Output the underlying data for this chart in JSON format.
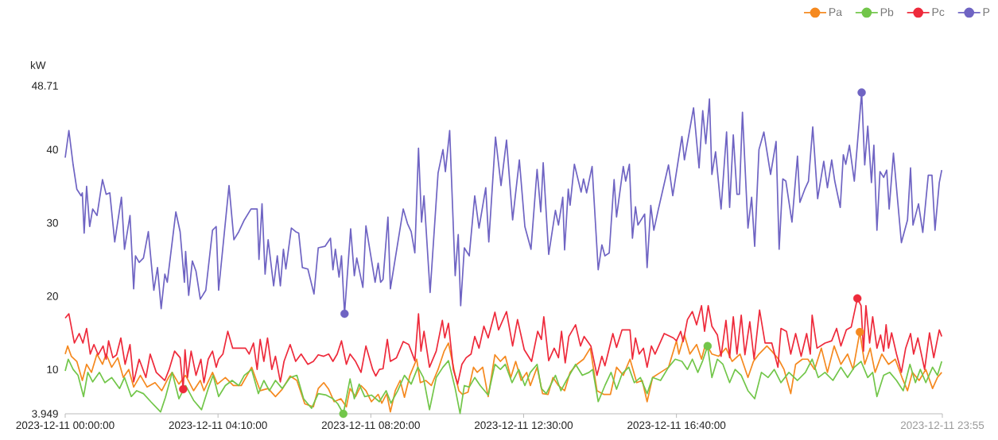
{
  "chart_data": {
    "type": "line",
    "ylabel": "kW",
    "xlim": [
      "2023-12-11T00:00",
      "2023-12-11T23:55"
    ],
    "ylim": [
      3.949,
      48.71
    ],
    "xticks": [
      {
        "value": "2023-12-11T00:00",
        "label": "2023-12-11 00:00:00"
      },
      {
        "value": "2023-12-11T04:10",
        "label": "2023-12-11 04:10:00"
      },
      {
        "value": "2023-12-11T08:20",
        "label": "2023-12-11 08:20:00"
      },
      {
        "value": "2023-12-11T12:30",
        "label": "2023-12-11 12:30:00"
      },
      {
        "value": "2023-12-11T16:40",
        "label": "2023-12-11 16:40:00"
      },
      {
        "value": "2023-12-11T23:55",
        "label": "2023-12-11 23:55"
      }
    ],
    "yticks": [
      3.949,
      10,
      20,
      30,
      40,
      48.71
    ],
    "legend": "top right",
    "series": [
      {
        "name": "Pa",
        "color": "#f5891f",
        "x": [
          "2023-12-11T00:00",
          "2023-12-11T00:04",
          "2023-12-11T00:10",
          "2023-12-11T00:19",
          "2023-12-11T00:28",
          "2023-12-11T00:35",
          "2023-12-11T00:43",
          "2023-12-11T00:52",
          "2023-12-11T01:01",
          "2023-12-11T01:07",
          "2023-12-11T01:16",
          "2023-12-11T01:26",
          "2023-12-11T01:35",
          "2023-12-11T01:44",
          "2023-12-11T01:52",
          "2023-12-11T02:03",
          "2023-12-11T02:14",
          "2023-12-11T02:27",
          "2023-12-11T02:38",
          "2023-12-11T02:49",
          "2023-12-11T02:55",
          "2023-12-11T03:06",
          "2023-12-11T03:17",
          "2023-12-11T03:30",
          "2023-12-11T03:41",
          "2023-12-11T03:47",
          "2023-12-11T04:01",
          "2023-12-11T04:09",
          "2023-12-11T04:22",
          "2023-12-11T04:35",
          "2023-12-11T04:48",
          "2023-12-11T05:05",
          "2023-12-11T05:19",
          "2023-12-11T05:32",
          "2023-12-11T05:44",
          "2023-12-11T05:55",
          "2023-12-11T06:08",
          "2023-12-11T06:19",
          "2023-12-11T06:32",
          "2023-12-11T06:46",
          "2023-12-11T06:54",
          "2023-12-11T07:03",
          "2023-12-11T07:11",
          "2023-12-11T07:20",
          "2023-12-11T07:31",
          "2023-12-11T07:40",
          "2023-12-11T07:46",
          "2023-12-11T07:55",
          "2023-12-11T08:04",
          "2023-12-11T08:12",
          "2023-12-11T08:21",
          "2023-12-11T08:32",
          "2023-12-11T08:38",
          "2023-12-11T08:46",
          "2023-12-11T08:52",
          "2023-12-11T09:00",
          "2023-12-11T09:08",
          "2023-12-11T09:15",
          "2023-12-11T09:24",
          "2023-12-11T09:35",
          "2023-12-11T09:41",
          "2023-12-11T09:50",
          "2023-12-11T09:59",
          "2023-12-11T10:10",
          "2023-12-11T10:20",
          "2023-12-11T10:27",
          "2023-12-11T10:38",
          "2023-12-11T10:44",
          "2023-12-11T10:50",
          "2023-12-11T10:59",
          "2023-12-11T11:08",
          "2023-12-11T11:14",
          "2023-12-11T11:23",
          "2023-12-11T11:32",
          "2023-12-11T11:43",
          "2023-12-11T11:52",
          "2023-12-11T12:00",
          "2023-12-11T12:09",
          "2023-12-11T12:17",
          "2023-12-11T12:26",
          "2023-12-11T12:35",
          "2023-12-11T12:41",
          "2023-12-11T12:52",
          "2023-12-11T13:01",
          "2023-12-11T13:10",
          "2023-12-11T13:18",
          "2023-12-11T13:27",
          "2023-12-11T13:37",
          "2023-12-11T13:46",
          "2023-12-11T13:57",
          "2023-12-11T14:08",
          "2023-12-11T14:19",
          "2023-12-11T14:30",
          "2023-12-11T14:41",
          "2023-12-11T14:52",
          "2023-12-11T15:02",
          "2023-12-11T15:13",
          "2023-12-11T15:24",
          "2023-12-11T15:35",
          "2023-12-11T15:44",
          "2023-12-11T15:52",
          "2023-12-11T16:01",
          "2023-12-11T16:14",
          "2023-12-11T16:27",
          "2023-12-11T16:40",
          "2023-12-11T16:44",
          "2023-12-11T16:53",
          "2023-12-11T17:02",
          "2023-12-11T17:13",
          "2023-12-11T17:21",
          "2023-12-11T17:28",
          "2023-12-11T17:38",
          "2023-12-11T17:49",
          "2023-12-11T18:01",
          "2023-12-11T18:11",
          "2023-12-11T18:24",
          "2023-12-11T18:37",
          "2023-12-11T18:46",
          "2023-12-11T18:55",
          "2023-12-11T19:08",
          "2023-12-11T19:16",
          "2023-12-11T19:27",
          "2023-12-11T19:36",
          "2023-12-11T19:47",
          "2023-12-11T19:55",
          "2023-12-11T20:06",
          "2023-12-11T20:15",
          "2023-12-11T20:26",
          "2023-12-11T20:37",
          "2023-12-11T20:47",
          "2023-12-11T20:58",
          "2023-12-11T21:09",
          "2023-12-11T21:20",
          "2023-12-11T21:29",
          "2023-12-11T21:40",
          "2023-12-11T21:48",
          "2023-12-11T21:57",
          "2023-12-11T22:05",
          "2023-12-11T22:16",
          "2023-12-11T22:27",
          "2023-12-11T22:38",
          "2023-12-11T22:49",
          "2023-12-11T22:58",
          "2023-12-11T23:06",
          "2023-12-11T23:17",
          "2023-12-11T23:28",
          "2023-12-11T23:39",
          "2023-12-11T23:47",
          "2023-12-11T23:54"
        ],
        "values": [
          12.1,
          13.2,
          11.8,
          11.1,
          8.5,
          10.7,
          9.6,
          12.1,
          10.7,
          12.1,
          10.3,
          11.6,
          8.9,
          10.0,
          7.6,
          9.2,
          7.6,
          8.2,
          7.1,
          8.9,
          9.6,
          8.0,
          9.2,
          7.1,
          8.5,
          7.1,
          9.6,
          8.0,
          8.9,
          7.8,
          7.8,
          10.3,
          7.1,
          7.4,
          6.3,
          7.3,
          9.1,
          8.5,
          5.3,
          4.9,
          7.4,
          8.2,
          7.3,
          5.6,
          6.0,
          4.9,
          7.4,
          6.3,
          7.8,
          7.1,
          5.6,
          6.6,
          5.4,
          6.7,
          4.2,
          7.1,
          8.5,
          6.2,
          9.2,
          11.4,
          8.2,
          8.5,
          7.8,
          10.0,
          12.5,
          13.6,
          9.2,
          7.1,
          6.6,
          6.9,
          10.3,
          9.6,
          10.3,
          6.3,
          12.0,
          11.1,
          11.8,
          8.9,
          11.1,
          8.5,
          9.6,
          7.8,
          10.3,
          6.7,
          6.6,
          8.9,
          7.8,
          7.1,
          9.6,
          10.7,
          11.4,
          12.9,
          7.1,
          6.6,
          6.6,
          10.3,
          9.2,
          11.4,
          8.2,
          8.5,
          5.6,
          8.9,
          9.6,
          10.3,
          13.9,
          12.1,
          14.7,
          12.1,
          13.4,
          11.4,
          13.6,
          12.1,
          11.8,
          12.9,
          11.1,
          12.1,
          8.9,
          11.1,
          12.1,
          13.2,
          12.5,
          11.4,
          10.0,
          6.7,
          10.7,
          11.4,
          11.4,
          10.0,
          12.9,
          9.6,
          13.2,
          10.7,
          12.1,
          10.0,
          15.1,
          10.7,
          12.9,
          9.6,
          12.1,
          10.7,
          11.4,
          8.9,
          7.1,
          9.6,
          8.5,
          10.0,
          7.4,
          8.9,
          9.6
        ]
      },
      {
        "name": "Pb",
        "color": "#72c64a",
        "x": [
          "2023-12-11T00:00",
          "2023-12-11T00:05",
          "2023-12-11T00:13",
          "2023-12-11T00:21",
          "2023-12-11T00:30",
          "2023-12-11T00:37",
          "2023-12-11T00:45",
          "2023-12-11T00:56",
          "2023-12-11T01:05",
          "2023-12-11T01:16",
          "2023-12-11T01:29",
          "2023-12-11T01:37",
          "2023-12-11T01:48",
          "2023-12-11T01:57",
          "2023-12-11T02:08",
          "2023-12-11T02:20",
          "2023-12-11T02:36",
          "2023-12-11T02:44",
          "2023-12-11T02:55",
          "2023-12-11T03:06",
          "2023-12-11T03:17",
          "2023-12-11T03:30",
          "2023-12-11T03:43",
          "2023-12-11T03:54",
          "2023-12-11T04:02",
          "2023-12-11T04:11",
          "2023-12-11T04:22",
          "2023-12-11T04:33",
          "2023-12-11T04:44",
          "2023-12-11T04:53",
          "2023-12-11T05:05",
          "2023-12-11T05:16",
          "2023-12-11T05:25",
          "2023-12-11T05:34",
          "2023-12-11T05:44",
          "2023-12-11T05:55",
          "2023-12-11T06:08",
          "2023-12-11T06:19",
          "2023-12-11T06:30",
          "2023-12-11T06:43",
          "2023-12-11T06:54",
          "2023-12-11T07:07",
          "2023-12-11T07:18",
          "2023-12-11T07:26",
          "2023-12-11T07:35",
          "2023-12-11T07:46",
          "2023-12-11T07:53",
          "2023-12-11T08:01",
          "2023-12-11T08:10",
          "2023-12-11T08:21",
          "2023-12-11T08:34",
          "2023-12-11T08:45",
          "2023-12-11T08:53",
          "2023-12-11T09:04",
          "2023-12-11T09:15",
          "2023-12-11T09:26",
          "2023-12-11T09:37",
          "2023-12-11T09:46",
          "2023-12-11T09:56",
          "2023-12-11T10:07",
          "2023-12-11T10:18",
          "2023-12-11T10:27",
          "2023-12-11T10:38",
          "2023-12-11T10:46",
          "2023-12-11T10:53",
          "2023-12-11T11:01",
          "2023-12-11T11:10",
          "2023-12-11T11:19",
          "2023-12-11T11:32",
          "2023-12-11T11:43",
          "2023-12-11T11:52",
          "2023-12-11T12:00",
          "2023-12-11T12:11",
          "2023-12-11T12:22",
          "2023-12-11T12:32",
          "2023-12-11T12:41",
          "2023-12-11T12:52",
          "2023-12-11T12:59",
          "2023-12-11T13:07",
          "2023-12-11T13:16",
          "2023-12-11T13:22",
          "2023-12-11T13:31",
          "2023-12-11T13:40",
          "2023-12-11T13:55",
          "2023-12-11T14:06",
          "2023-12-11T14:17",
          "2023-12-11T14:23",
          "2023-12-11T14:32",
          "2023-12-11T14:43",
          "2023-12-11T14:53",
          "2023-12-11T15:02",
          "2023-12-11T15:11",
          "2023-12-11T15:22",
          "2023-12-11T15:31",
          "2023-12-11T15:41",
          "2023-12-11T15:52",
          "2023-12-11T16:01",
          "2023-12-11T16:14",
          "2023-12-11T16:27",
          "2023-12-11T16:38",
          "2023-12-11T16:49",
          "2023-12-11T16:58",
          "2023-12-11T17:06",
          "2023-12-11T17:15",
          "2023-12-11T17:23",
          "2023-12-11T17:31",
          "2023-12-11T17:38",
          "2023-12-11T17:47",
          "2023-12-11T17:56",
          "2023-12-11T18:07",
          "2023-12-11T18:16",
          "2023-12-11T18:26",
          "2023-12-11T18:37",
          "2023-12-11T18:48",
          "2023-12-11T18:59",
          "2023-12-11T19:10",
          "2023-12-11T19:20",
          "2023-12-11T19:31",
          "2023-12-11T19:44",
          "2023-12-11T19:58",
          "2023-12-11T20:11",
          "2023-12-11T20:22",
          "2023-12-11T20:32",
          "2023-12-11T20:43",
          "2023-12-11T20:56",
          "2023-12-11T21:09",
          "2023-12-11T21:20",
          "2023-12-11T21:31",
          "2023-12-11T21:42",
          "2023-12-11T21:53",
          "2023-12-11T22:01",
          "2023-12-11T22:08",
          "2023-12-11T22:19",
          "2023-12-11T22:29",
          "2023-12-11T22:40",
          "2023-12-11T22:51",
          "2023-12-11T23:02",
          "2023-12-11T23:11",
          "2023-12-11T23:19",
          "2023-12-11T23:28",
          "2023-12-11T23:39",
          "2023-12-11T23:47",
          "2023-12-11T23:54"
        ],
        "values": [
          9.8,
          11.4,
          10.0,
          9.2,
          6.3,
          9.6,
          8.3,
          9.6,
          8.2,
          8.9,
          7.4,
          8.9,
          6.3,
          7.1,
          6.7,
          5.6,
          4.2,
          6.2,
          9.6,
          6.0,
          7.8,
          5.8,
          4.5,
          7.4,
          9.2,
          6.3,
          7.8,
          8.5,
          7.8,
          9.2,
          10.0,
          6.7,
          8.5,
          7.1,
          8.5,
          7.4,
          8.9,
          9.2,
          6.0,
          4.7,
          6.7,
          6.5,
          6.0,
          5.3,
          3.95,
          8.7,
          6.0,
          8.0,
          6.3,
          6.5,
          5.6,
          7.1,
          5.4,
          7.1,
          9.2,
          8.0,
          10.3,
          8.9,
          4.5,
          8.9,
          10.3,
          11.2,
          7.4,
          4.0,
          7.8,
          7.6,
          8.9,
          7.8,
          6.5,
          10.7,
          10.0,
          10.7,
          8.2,
          10.0,
          7.8,
          9.6,
          10.7,
          7.4,
          6.7,
          8.2,
          9.2,
          7.1,
          8.5,
          10.7,
          9.2,
          9.6,
          10.0,
          5.6,
          7.8,
          9.6,
          7.3,
          9.4,
          10.3,
          8.2,
          8.9,
          6.7,
          8.9,
          8.5,
          10.3,
          11.4,
          11.1,
          10.0,
          11.4,
          9.6,
          11.2,
          13.2,
          8.9,
          11.4,
          10.7,
          8.2,
          10.0,
          9.2,
          7.1,
          6.0,
          9.6,
          8.9,
          10.0,
          8.2,
          9.6,
          8.5,
          9.6,
          11.4,
          8.9,
          9.6,
          8.5,
          10.3,
          8.9,
          10.3,
          11.1,
          8.9,
          9.6,
          6.3,
          9.2,
          9.6,
          8.5,
          7.1,
          10.7,
          8.2,
          10.0,
          8.2,
          10.3,
          9.2,
          11.1
        ]
      },
      {
        "name": "Pc",
        "color": "#ee2a3b",
        "x": [
          "2023-12-11T00:00",
          "2023-12-11T00:06",
          "2023-12-11T00:15",
          "2023-12-11T00:23",
          "2023-12-11T00:29",
          "2023-12-11T00:35",
          "2023-12-11T00:41",
          "2023-12-11T00:47",
          "2023-12-11T00:54",
          "2023-12-11T01:02",
          "2023-12-11T01:07",
          "2023-12-11T01:11",
          "2023-12-11T01:18",
          "2023-12-11T01:24",
          "2023-12-11T01:31",
          "2023-12-11T01:38",
          "2023-12-11T01:46",
          "2023-12-11T01:52",
          "2023-12-11T02:01",
          "2023-12-11T02:12",
          "2023-12-11T02:19",
          "2023-12-11T02:29",
          "2023-12-11T02:43",
          "2023-12-11T02:50",
          "2023-12-11T02:59",
          "2023-12-11T03:08",
          "2023-12-11T03:13",
          "2023-12-11T03:16",
          "2023-12-11T03:20",
          "2023-12-11T03:26",
          "2023-12-11T03:34",
          "2023-12-11T03:42",
          "2023-12-11T03:47",
          "2023-12-11T03:54",
          "2023-12-11T04:01",
          "2023-12-11T04:07",
          "2023-12-11T04:11",
          "2023-12-11T04:18",
          "2023-12-11T04:26",
          "2023-12-11T04:34",
          "2023-12-11T04:44",
          "2023-12-11T04:55",
          "2023-12-11T05:01",
          "2023-12-11T05:08",
          "2023-12-11T05:14",
          "2023-12-11T05:19",
          "2023-12-11T05:25",
          "2023-12-11T05:31",
          "2023-12-11T05:38",
          "2023-12-11T05:44",
          "2023-12-11T05:52",
          "2023-12-11T05:58",
          "2023-12-11T06:08",
          "2023-12-11T06:17",
          "2023-12-11T06:26",
          "2023-12-11T06:37",
          "2023-12-11T06:46",
          "2023-12-11T06:54",
          "2023-12-11T07:03",
          "2023-12-11T07:11",
          "2023-12-11T07:18",
          "2023-12-11T07:25",
          "2023-12-11T07:32",
          "2023-12-11T07:40",
          "2023-12-11T07:46",
          "2023-12-11T07:55",
          "2023-12-11T08:04",
          "2023-12-11T08:12",
          "2023-12-11T08:23",
          "2023-12-11T08:28",
          "2023-12-11T08:34",
          "2023-12-11T08:40",
          "2023-12-11T08:47",
          "2023-12-11T08:52",
          "2023-12-11T09:02",
          "2023-12-11T09:13",
          "2023-12-11T09:22",
          "2023-12-11T09:32",
          "2023-12-11T09:38",
          "2023-12-11T09:42",
          "2023-12-11T09:47",
          "2023-12-11T09:56",
          "2023-12-11T10:07",
          "2023-12-11T10:17",
          "2023-12-11T10:21",
          "2023-12-11T10:27",
          "2023-12-11T10:35",
          "2023-12-11T10:42",
          "2023-12-11T10:49",
          "2023-12-11T10:56",
          "2023-12-11T11:04",
          "2023-12-11T11:10",
          "2023-12-11T11:17",
          "2023-12-11T11:25",
          "2023-12-11T11:32",
          "2023-12-11T11:43",
          "2023-12-11T11:49",
          "2023-12-11T12:02",
          "2023-12-11T12:12",
          "2023-12-11T12:20",
          "2023-12-11T12:31",
          "2023-12-11T12:43",
          "2023-12-11T12:53",
          "2023-12-11T12:59",
          "2023-12-11T13:03",
          "2023-12-11T13:11",
          "2023-12-11T13:20",
          "2023-12-11T13:27",
          "2023-12-11T13:32",
          "2023-12-11T13:38",
          "2023-12-11T13:44",
          "2023-12-11T13:55",
          "2023-12-11T14:03",
          "2023-12-11T14:09",
          "2023-12-11T14:20",
          "2023-12-11T14:30",
          "2023-12-11T14:38",
          "2023-12-11T14:43",
          "2023-12-11T14:56",
          "2023-12-11T15:02",
          "2023-12-11T15:11",
          "2023-12-11T15:24",
          "2023-12-11T15:28",
          "2023-12-11T15:33",
          "2023-12-11T15:39",
          "2023-12-11T15:46",
          "2023-12-11T15:52",
          "2023-12-11T15:59",
          "2023-12-11T16:05",
          "2023-12-11T16:20",
          "2023-12-11T16:35",
          "2023-12-11T16:40",
          "2023-12-11T16:47",
          "2023-12-11T16:51",
          "2023-12-11T16:58",
          "2023-12-11T17:06",
          "2023-12-11T17:13",
          "2023-12-11T17:21",
          "2023-12-11T17:26",
          "2023-12-11T17:32",
          "2023-12-11T17:38",
          "2023-12-11T17:47",
          "2023-12-11T17:53",
          "2023-12-11T18:01",
          "2023-12-11T18:07",
          "2023-12-11T18:13",
          "2023-12-11T18:19",
          "2023-12-11T18:26",
          "2023-12-11T18:32",
          "2023-12-11T18:40",
          "2023-12-11T18:47",
          "2023-12-11T18:56",
          "2023-12-11T19:05",
          "2023-12-11T19:16",
          "2023-12-11T19:26",
          "2023-12-11T19:31",
          "2023-12-11T19:40",
          "2023-12-11T19:47",
          "2023-12-11T19:55",
          "2023-12-11T20:04",
          "2023-12-11T20:13",
          "2023-12-11T20:19",
          "2023-12-11T20:22",
          "2023-12-11T20:30",
          "2023-12-11T20:43",
          "2023-12-11T20:54",
          "2023-12-11T21:02",
          "2023-12-11T21:09",
          "2023-12-11T21:18",
          "2023-12-11T21:26",
          "2023-12-11T21:36",
          "2023-12-11T21:42",
          "2023-12-11T21:46",
          "2023-12-11T21:50",
          "2023-12-11T21:56",
          "2023-12-11T22:01",
          "2023-12-11T22:08",
          "2023-12-11T22:14",
          "2023-12-11T22:19",
          "2023-12-11T22:23",
          "2023-12-11T22:27",
          "2023-12-11T22:32",
          "2023-12-11T22:40",
          "2023-12-11T22:48",
          "2023-12-11T22:55",
          "2023-12-11T23:03",
          "2023-12-11T23:08",
          "2023-12-11T23:15",
          "2023-12-11T23:26",
          "2023-12-11T23:34",
          "2023-12-11T23:41",
          "2023-12-11T23:50",
          "2023-12-11T23:54"
        ],
        "values": [
          17.0,
          17.6,
          13.6,
          14.9,
          13.6,
          15.6,
          12.1,
          13.4,
          12.0,
          13.2,
          11.4,
          13.9,
          11.6,
          12.0,
          14.3,
          10.7,
          13.4,
          8.3,
          11.4,
          8.9,
          12.1,
          9.6,
          8.5,
          10.0,
          12.5,
          11.6,
          7.3,
          12.7,
          8.9,
          12.5,
          9.2,
          11.4,
          8.2,
          11.4,
          12.5,
          10.3,
          11.4,
          12.1,
          15.2,
          12.9,
          12.9,
          12.9,
          12.1,
          13.6,
          10.0,
          14.1,
          11.1,
          14.3,
          10.0,
          11.8,
          8.3,
          11.1,
          13.4,
          11.1,
          12.1,
          10.7,
          11.1,
          12.0,
          11.8,
          12.1,
          11.1,
          12.1,
          13.9,
          10.7,
          12.1,
          11.1,
          9.6,
          13.2,
          10.0,
          9.1,
          10.0,
          10.1,
          14.1,
          11.1,
          11.6,
          13.8,
          13.4,
          11.2,
          17.6,
          12.5,
          15.2,
          10.3,
          12.5,
          16.7,
          14.3,
          16.3,
          10.0,
          8.0,
          10.7,
          11.6,
          12.1,
          14.5,
          12.9,
          15.9,
          14.3,
          17.8,
          15.4,
          17.9,
          13.2,
          16.8,
          12.7,
          11.1,
          15.2,
          14.1,
          17.2,
          11.2,
          12.9,
          11.6,
          15.2,
          10.9,
          14.5,
          16.1,
          13.2,
          14.5,
          13.2,
          9.2,
          11.8,
          10.5,
          14.9,
          13.0,
          15.4,
          15.4,
          11.4,
          14.3,
          12.1,
          12.9,
          10.3,
          13.2,
          12.1,
          14.9,
          14.3,
          13.9,
          15.2,
          13.8,
          16.8,
          17.9,
          16.1,
          18.7,
          15.2,
          18.7,
          15.9,
          14.7,
          11.8,
          16.7,
          11.6,
          17.2,
          12.1,
          17.4,
          12.0,
          16.5,
          11.4,
          18.1,
          13.6,
          13.6,
          10.3,
          15.6,
          15.2,
          12.1,
          14.9,
          11.8,
          14.9,
          12.1,
          17.4,
          12.9,
          13.6,
          13.9,
          15.6,
          13.2,
          15.4,
          15.8,
          19.7,
          18.7,
          12.5,
          18.7,
          13.6,
          17.2,
          12.9,
          14.7,
          12.5,
          16.1,
          12.9,
          15.0,
          12.1,
          9.6,
          12.9,
          14.9,
          12.1,
          14.3,
          10.0,
          15.0,
          11.6,
          15.4,
          14.5
        ]
      },
      {
        "name": "P",
        "color": "#6f64c3",
        "x": [
          "2023-12-11T00:00",
          "2023-12-11T00:06",
          "2023-12-11T00:13",
          "2023-12-11T00:19",
          "2023-12-11T00:26",
          "2023-12-11T00:28",
          "2023-12-11T00:31",
          "2023-12-11T00:35",
          "2023-12-11T00:40",
          "2023-12-11T00:45",
          "2023-12-11T00:52",
          "2023-12-11T01:01",
          "2023-12-11T01:07",
          "2023-12-11T01:13",
          "2023-12-11T01:21",
          "2023-12-11T01:32",
          "2023-12-11T01:37",
          "2023-12-11T01:46",
          "2023-12-11T01:52",
          "2023-12-11T01:55",
          "2023-12-11T02:01",
          "2023-12-11T02:08",
          "2023-12-11T02:16",
          "2023-12-11T02:25",
          "2023-12-11T02:31",
          "2023-12-11T02:37",
          "2023-12-11T02:43",
          "2023-12-11T02:47",
          "2023-12-11T03:01",
          "2023-12-11T03:08",
          "2023-12-11T03:15",
          "2023-12-11T03:17",
          "2023-12-11T03:22",
          "2023-12-11T03:28",
          "2023-12-11T03:34",
          "2023-12-11T03:41",
          "2023-12-11T03:50",
          "2023-12-11T04:01",
          "2023-12-11T04:07",
          "2023-12-11T04:11",
          "2023-12-11T04:28",
          "2023-12-11T04:36",
          "2023-12-11T04:44",
          "2023-12-11T04:53",
          "2023-12-11T05:04",
          "2023-12-11T05:14",
          "2023-12-11T05:17",
          "2023-12-11T05:22",
          "2023-12-11T05:27",
          "2023-12-11T05:32",
          "2023-12-11T05:41",
          "2023-12-11T05:47",
          "2023-12-11T05:52",
          "2023-12-11T05:57",
          "2023-12-11T06:01",
          "2023-12-11T06:10",
          "2023-12-11T06:17",
          "2023-12-11T06:22",
          "2023-12-11T06:28",
          "2023-12-11T06:37",
          "2023-12-11T06:47",
          "2023-12-11T06:54",
          "2023-12-11T07:05",
          "2023-12-11T07:14",
          "2023-12-11T07:18",
          "2023-12-11T07:22",
          "2023-12-11T07:28",
          "2023-12-11T07:32",
          "2023-12-11T07:37",
          "2023-12-11T07:47",
          "2023-12-11T07:53",
          "2023-12-11T07:57",
          "2023-12-11T08:07",
          "2023-12-11T08:12",
          "2023-12-11T08:27",
          "2023-12-11T08:32",
          "2023-12-11T08:36",
          "2023-12-11T08:40",
          "2023-12-11T08:48",
          "2023-12-11T08:52",
          "2023-12-11T09:13",
          "2023-12-11T09:20",
          "2023-12-11T09:26",
          "2023-12-11T09:32",
          "2023-12-11T09:38",
          "2023-12-11T09:43",
          "2023-12-11T09:47",
          "2023-12-11T09:57",
          "2023-12-11T10:10",
          "2023-12-11T10:18",
          "2023-12-11T10:22",
          "2023-12-11T10:29",
          "2023-12-11T10:38",
          "2023-12-11T10:43",
          "2023-12-11T10:47",
          "2023-12-11T10:53",
          "2023-12-11T11:01",
          "2023-12-11T11:10",
          "2023-12-11T11:17",
          "2023-12-11T11:28",
          "2023-12-11T11:33",
          "2023-12-11T11:44",
          "2023-12-11T11:53",
          "2023-12-11T12:02",
          "2023-12-11T12:12",
          "2023-12-11T12:23",
          "2023-12-11T12:32",
          "2023-12-11T12:42",
          "2023-12-11T12:52",
          "2023-12-11T12:58",
          "2023-12-11T13:02",
          "2023-12-11T13:11",
          "2023-12-11T13:22",
          "2023-12-11T13:27",
          "2023-12-11T13:34",
          "2023-12-11T13:37",
          "2023-12-11T13:43",
          "2023-12-11T13:46",
          "2023-12-11T13:53",
          "2023-12-11T14:04",
          "2023-12-11T14:08",
          "2023-12-11T14:13",
          "2023-12-11T14:22",
          "2023-12-11T14:32",
          "2023-12-11T14:38",
          "2023-12-11T14:43",
          "2023-12-11T14:50",
          "2023-12-11T14:58",
          "2023-12-11T15:02",
          "2023-12-11T15:13",
          "2023-12-11T15:17",
          "2023-12-11T15:23",
          "2023-12-11T15:28",
          "2023-12-11T15:33",
          "2023-12-11T15:37",
          "2023-12-11T15:48",
          "2023-12-11T15:52",
          "2023-12-11T15:58",
          "2023-12-11T16:03",
          "2023-12-11T16:10",
          "2023-12-11T16:27",
          "2023-12-11T16:34",
          "2023-12-11T16:49",
          "2023-12-11T16:53",
          "2023-12-11T17:08",
          "2023-12-11T17:17",
          "2023-12-11T17:23",
          "2023-12-11T17:28",
          "2023-12-11T17:34",
          "2023-12-11T17:38",
          "2023-12-11T17:44",
          "2023-12-11T17:53",
          "2023-12-11T18:02",
          "2023-12-11T18:07",
          "2023-12-11T18:13",
          "2023-12-11T18:19",
          "2023-12-11T18:23",
          "2023-12-11T18:28",
          "2023-12-11T18:37",
          "2023-12-11T18:43",
          "2023-12-11T18:48",
          "2023-12-11T18:55",
          "2023-12-11T19:03",
          "2023-12-11T19:14",
          "2023-12-11T19:23",
          "2023-12-11T19:28",
          "2023-12-11T19:34",
          "2023-12-11T19:39",
          "2023-12-11T19:49",
          "2023-12-11T19:58",
          "2023-12-11T20:02",
          "2023-12-11T20:10",
          "2023-12-11T20:16",
          "2023-12-11T20:23",
          "2023-12-11T20:31",
          "2023-12-11T20:41",
          "2023-12-11T20:47",
          "2023-12-11T20:54",
          "2023-12-11T20:59",
          "2023-12-11T21:08",
          "2023-12-11T21:13",
          "2023-12-11T21:17",
          "2023-12-11T21:23",
          "2023-12-11T21:31",
          "2023-12-11T21:43",
          "2023-12-11T21:48",
          "2023-12-11T21:53",
          "2023-12-11T21:59",
          "2023-12-11T22:03",
          "2023-12-11T22:08",
          "2023-12-11T22:13",
          "2023-12-11T22:19",
          "2023-12-11T22:24",
          "2023-12-11T22:28",
          "2023-12-11T22:35",
          "2023-12-11T22:48",
          "2023-12-11T22:58",
          "2023-12-11T23:03",
          "2023-12-11T23:07",
          "2023-12-11T23:16",
          "2023-12-11T23:23",
          "2023-12-11T23:32",
          "2023-12-11T23:38",
          "2023-12-11T23:43",
          "2023-12-11T23:50",
          "2023-12-11T23:54"
        ],
        "values": [
          38.9,
          42.6,
          37.9,
          34.6,
          33.7,
          34.1,
          28.6,
          35.0,
          29.5,
          31.9,
          31.0,
          35.9,
          33.9,
          34.1,
          27.4,
          33.5,
          26.4,
          31.0,
          21.0,
          25.5,
          24.6,
          25.2,
          28.8,
          20.8,
          23.9,
          18.3,
          23.0,
          21.9,
          31.5,
          28.8,
          21.9,
          26.1,
          20.1,
          24.8,
          23.4,
          19.6,
          20.8,
          29.0,
          29.5,
          20.8,
          35.1,
          27.7,
          28.8,
          30.4,
          31.9,
          31.9,
          25.0,
          32.6,
          23.0,
          27.7,
          21.4,
          25.5,
          21.4,
          26.4,
          23.7,
          29.3,
          28.8,
          28.6,
          23.9,
          23.7,
          20.3,
          26.6,
          26.8,
          27.9,
          23.6,
          26.4,
          22.6,
          25.5,
          17.6,
          29.2,
          22.8,
          25.2,
          21.2,
          29.6,
          21.9,
          24.5,
          21.9,
          22.3,
          30.8,
          21.0,
          31.9,
          29.9,
          28.8,
          25.9,
          40.2,
          30.1,
          33.7,
          20.5,
          36.8,
          40.0,
          37.0,
          42.6,
          22.8,
          28.4,
          18.7,
          26.6,
          25.5,
          33.7,
          29.3,
          34.8,
          27.4,
          41.7,
          35.1,
          41.3,
          30.4,
          38.6,
          29.5,
          26.4,
          37.3,
          31.5,
          38.2,
          25.7,
          31.7,
          29.7,
          33.5,
          26.3,
          34.6,
          32.4,
          38.0,
          34.2,
          36.0,
          34.1,
          37.7,
          23.6,
          27.0,
          25.5,
          25.9,
          35.9,
          30.8,
          37.7,
          35.7,
          38.0,
          27.9,
          32.2,
          29.7,
          31.2,
          23.9,
          32.4,
          29.0,
          31.7,
          37.9,
          33.7,
          41.8,
          38.6,
          45.7,
          37.5,
          45.3,
          40.8,
          46.9,
          36.6,
          39.7,
          31.9,
          42.4,
          32.1,
          42.0,
          33.9,
          33.9,
          45.1,
          29.3,
          33.5,
          26.8,
          40.0,
          42.4,
          36.6,
          41.1,
          26.4,
          36.0,
          35.7,
          30.1,
          39.1,
          32.8,
          34.6,
          35.7,
          43.1,
          33.3,
          38.4,
          34.8,
          38.6,
          35.7,
          32.1,
          39.3,
          38.0,
          40.6,
          35.7,
          47.8,
          37.9,
          43.2,
          35.5,
          40.6,
          29.0,
          37.0,
          36.2,
          37.2,
          31.9,
          39.5,
          27.3,
          30.4,
          37.5,
          29.7,
          32.6,
          28.7,
          36.5,
          36.5,
          29.0,
          35.5,
          37.2
        ]
      },
      {
        "type": "scatter",
        "color": "#f5891f",
        "x": [
          "2023-12-11T21:40"
        ],
        "values": [
          15.1
        ]
      },
      {
        "type": "scatter",
        "color": "#72c64a",
        "x": [
          "2023-12-11T07:35",
          "2023-12-11T17:31"
        ],
        "values": [
          3.95,
          13.2
        ]
      },
      {
        "type": "scatter",
        "color": "#ee2a3b",
        "x": [
          "2023-12-11T03:13",
          "2023-12-11T21:36"
        ],
        "values": [
          7.3,
          19.7
        ]
      },
      {
        "type": "scatter",
        "color": "#6f64c3",
        "x": [
          "2023-12-11T07:37",
          "2023-12-11T21:43"
        ],
        "values": [
          17.6,
          47.8
        ]
      }
    ]
  }
}
